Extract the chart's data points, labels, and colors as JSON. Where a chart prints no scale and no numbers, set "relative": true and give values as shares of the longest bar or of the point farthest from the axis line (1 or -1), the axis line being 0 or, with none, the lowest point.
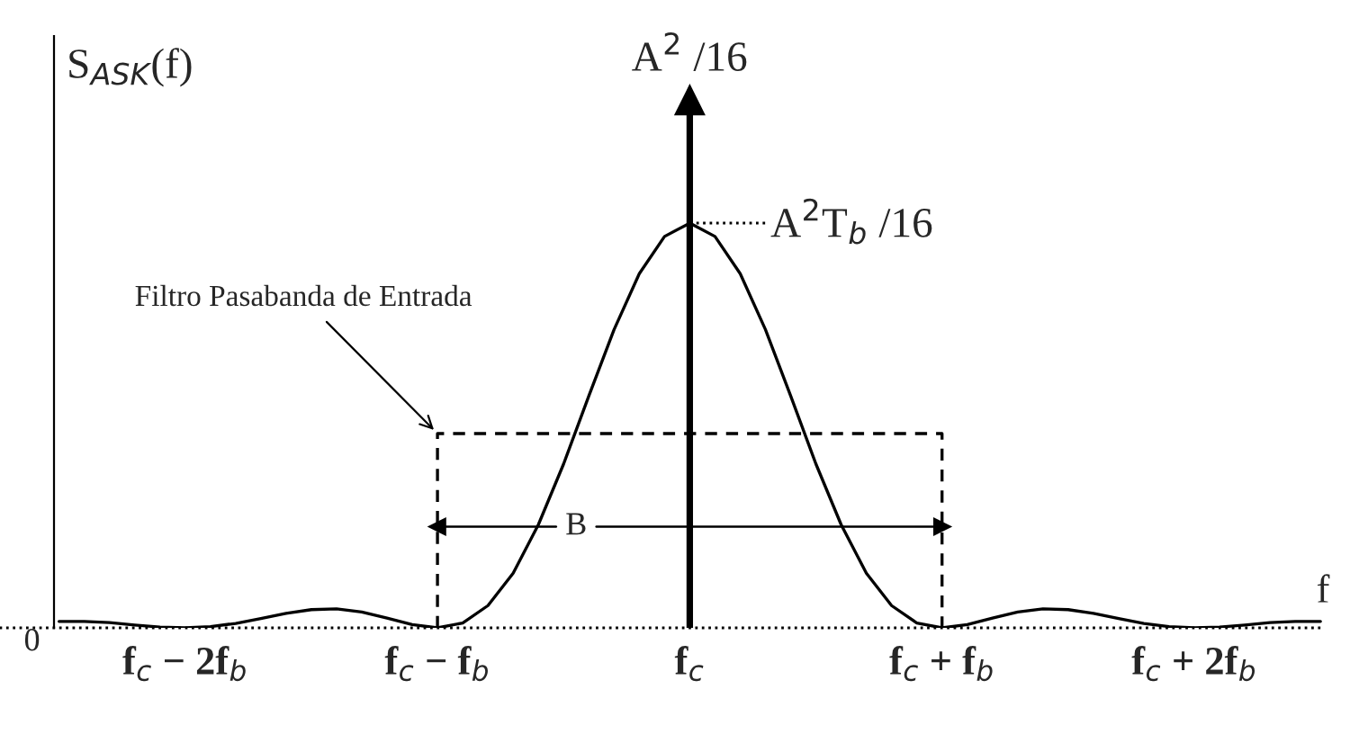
{
  "chart_data": {
    "type": "line",
    "relative": true,
    "ylabel": "S$_{ASK}$(f)",
    "xlabel": "f",
    "xticks": [
      {
        "value": -2,
        "label": "f$_{c}$ − 2f$_{b}$"
      },
      {
        "value": -1,
        "label": "f$_{c}$ − f$_{b}$"
      },
      {
        "value": 0,
        "label": "f$_{c}$"
      },
      {
        "value": 1,
        "label": "f$_{c}$ + f$_{b}$"
      },
      {
        "value": 2,
        "label": "f$_{c}$ + 2f$_{b}$"
      }
    ],
    "series": [
      {
        "color": "#000000",
        "line_style": "solid",
        "x": [
          -2.5,
          -2.4,
          -2.3,
          -2.2,
          -2.1,
          -2.0,
          -1.9,
          -1.8,
          -1.7,
          -1.6,
          -1.5,
          -1.4,
          -1.3,
          -1.2,
          -1.1,
          -1.0,
          -0.9,
          -0.8,
          -0.7,
          -0.6,
          -0.5,
          -0.4,
          -0.3,
          -0.2,
          -0.1,
          0.0,
          0.1,
          0.2,
          0.3,
          0.4,
          0.5,
          0.6,
          0.7,
          0.8,
          0.9,
          1.0,
          1.1,
          1.2,
          1.3,
          1.4,
          1.5,
          1.6,
          1.7,
          1.8,
          1.9,
          2.0,
          2.1,
          2.2,
          2.3,
          2.4,
          2.5
        ],
        "values": [
          0.016,
          0.016,
          0.013,
          0.007,
          0.002,
          0,
          0.003,
          0.011,
          0.023,
          0.036,
          0.045,
          0.047,
          0.039,
          0.024,
          0.008,
          0,
          0.012,
          0.055,
          0.135,
          0.255,
          0.405,
          0.573,
          0.737,
          0.875,
          0.967,
          1,
          0.967,
          0.875,
          0.737,
          0.573,
          0.405,
          0.255,
          0.135,
          0.055,
          0.012,
          0,
          0.008,
          0.024,
          0.039,
          0.047,
          0.045,
          0.036,
          0.023,
          0.011,
          0.003,
          0,
          0.002,
          0.007,
          0.013,
          0.016,
          0.016
        ]
      },
      {
        "name": "Filtro Pasabanda de Entrada",
        "color": "#000000",
        "line_style": "dashed",
        "x": [
          -1,
          -1,
          1,
          1
        ],
        "values": [
          0,
          0.48,
          0.48,
          0
        ]
      }
    ],
    "ref_lines": [
      {
        "axis": "x",
        "value": 0,
        "label": "A$^{2}$ /16",
        "color": "#000000",
        "line_style": "solid"
      },
      {
        "axis": "y",
        "value": 0,
        "label": "0",
        "color": "#000000",
        "line_style": "dotted"
      }
    ],
    "annotations": [
      {
        "text": "A$^{2}$T$_{b}$ /16",
        "x": 0,
        "y": 1
      },
      "B"
    ],
    "xlim": [
      -2.52,
      2.51
    ],
    "grid": false,
    "legend": false,
    "marker": "none"
  }
}
